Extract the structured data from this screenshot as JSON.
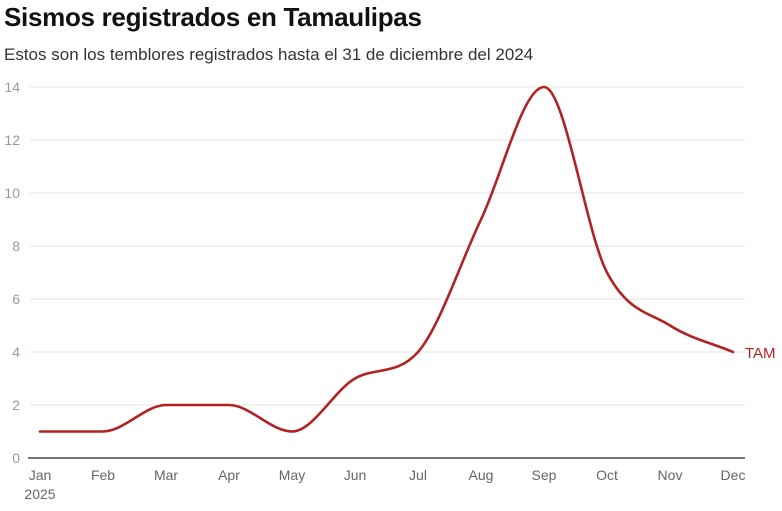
{
  "chart_data": {
    "type": "line",
    "title": "Sismos registrados en Tamaulipas",
    "subtitle": "Estos son los temblores registrados hasta el 31 de diciembre del 2024",
    "categories": [
      "Jan",
      "Feb",
      "Mar",
      "Apr",
      "May",
      "Jun",
      "Jul",
      "Aug",
      "Sep",
      "Oct",
      "Nov",
      "Dec"
    ],
    "year_label": "2025",
    "series": [
      {
        "name": "TAM",
        "values": [
          1,
          1,
          2,
          2,
          1,
          3,
          4,
          9,
          14,
          7,
          5,
          4
        ],
        "color": "#b22222"
      }
    ],
    "yticks": [
      "0",
      "2",
      "4",
      "6",
      "8",
      "10",
      "12",
      "14"
    ],
    "ylim": [
      0,
      14
    ],
    "xlabel": "",
    "ylabel": "",
    "grid": true,
    "legend": "end-of-line label"
  }
}
